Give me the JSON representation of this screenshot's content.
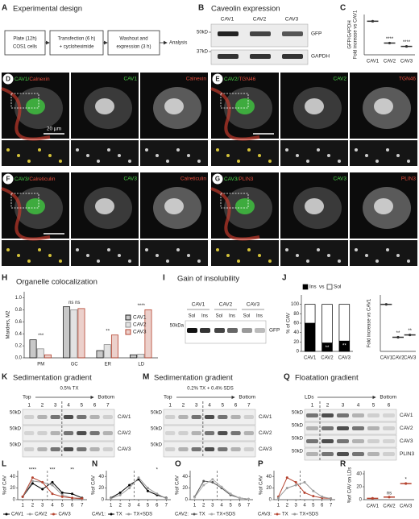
{
  "panels": {
    "A": {
      "letter": "A",
      "title": "Experimental design",
      "steps": [
        [
          "Plate (12h)",
          "COS1 cells"
        ],
        [
          "Transfection (6 h)",
          "+ cycloheximide"
        ],
        [
          "Washout and",
          "expression (3 h)"
        ]
      ],
      "end": "Analysis"
    },
    "B": {
      "letter": "B",
      "title": "Caveolin expression",
      "lanes": [
        "CAV1",
        "CAV2",
        "CAV3"
      ],
      "markers": [
        "50kD",
        "37kD"
      ],
      "bands": [
        "GFP",
        "GAPDH"
      ]
    },
    "C": {
      "letter": "C"
    },
    "D": {
      "letter": "D",
      "merge": [
        "CAV1/",
        "Calnexin"
      ],
      "channels": [
        "CAV1",
        "Calnexin"
      ],
      "scale": "20 µm"
    },
    "E": {
      "letter": "E",
      "merge": [
        "CAV2/",
        "TGN46"
      ],
      "channels": [
        "CAV2",
        "TGN46"
      ]
    },
    "F": {
      "letter": "F",
      "merge": [
        "CAV3/",
        "Calreticulin"
      ],
      "channels": [
        "CAV3",
        "Calreticulin"
      ]
    },
    "G": {
      "letter": "G",
      "merge": [
        "CAV3/",
        "PLIN3"
      ],
      "channels": [
        "CAV3",
        "PLIN3"
      ]
    },
    "H": {
      "letter": "H"
    },
    "I": {
      "letter": "I",
      "title": "Gain of insolubility",
      "lanes": [
        "CAV1",
        "CAV2",
        "CAV3"
      ],
      "fractions": [
        "Sol",
        "Ins"
      ],
      "marker": "50kDa",
      "band": "GFP"
    },
    "J": {
      "letter": "J"
    },
    "K": {
      "letter": "K",
      "title": "Sedimentation gradient",
      "condition": "0.5% TX",
      "ends": [
        "Top",
        "Bottom"
      ],
      "fractions": [
        1,
        2,
        3,
        4,
        5,
        6,
        7
      ],
      "marker": "50kD",
      "rows": [
        "CAV1",
        "CAV2",
        "CAV3"
      ]
    },
    "M": {
      "letter": "M",
      "title": "Sedimentation gradient",
      "condition": "0.2% TX + 0.4% SDS",
      "ends": [
        "Top",
        "Bottom"
      ],
      "fractions": [
        1,
        2,
        3,
        4,
        5,
        6,
        7
      ],
      "marker": "50kD",
      "rows": [
        "CAV1",
        "CAV2",
        "CAV3"
      ]
    },
    "Q": {
      "letter": "Q",
      "title": "Floatation gradient",
      "ends": [
        "LDs",
        "Bottom"
      ],
      "fractions": [
        1,
        2,
        3,
        4,
        5,
        6
      ],
      "marker": "50kD",
      "rows": [
        "CAV1",
        "CAV2",
        "CAV3",
        "PLIN3"
      ]
    },
    "L": {
      "letter": "L"
    },
    "N": {
      "letter": "N"
    },
    "O": {
      "letter": "O"
    },
    "P": {
      "letter": "P"
    },
    "R": {
      "letter": "R"
    }
  },
  "chart_data": [
    {
      "type": "dot",
      "ylabel": [
        "GFP/GAPDH",
        "Fold increase vs CAV1"
      ],
      "categories": [
        "CAV1",
        "CAV2",
        "CAV3"
      ],
      "values": [
        1,
        0.35,
        0.25
      ],
      "ylim": [
        0,
        1.2
      ],
      "color": "#333333",
      "annotations": [
        null,
        "****",
        "****"
      ]
    },
    {
      "type": "bar",
      "title": "Organelle colocalization",
      "ylabel": "Manders, M2",
      "categories": [
        "PM",
        "GC",
        "ER",
        "LD"
      ],
      "series": [
        {
          "name": "CAV1",
          "color": "#222222",
          "values": [
            0.3,
            0.85,
            0.12,
            0.05
          ]
        },
        {
          "name": "CAV2",
          "color": "#8c8c8c",
          "values": [
            0.15,
            0.8,
            0.22,
            0.06
          ]
        },
        {
          "name": "CAV3",
          "color": "#b5432f",
          "values": [
            0.05,
            0.82,
            0.38,
            0.8
          ]
        }
      ],
      "ylim": [
        0,
        1.1
      ],
      "yticks": [
        {
          "value": 0,
          "label": "0.0"
        },
        0.2,
        0.4,
        0.6,
        0.8,
        {
          "value": 1,
          "label": "1.0"
        }
      ],
      "annotations": [
        "***",
        "ns ns",
        "**",
        "****"
      ]
    },
    {
      "type": "stacked_bar",
      "ylabel": "% of CAV",
      "categories": [
        "CAV1",
        "CAV2",
        "CAV3"
      ],
      "series": [
        {
          "name": "Ins",
          "color": "#000000",
          "values": [
            60,
            18,
            22
          ]
        },
        {
          "name": "Sol",
          "color": "#ffffff",
          "values": [
            40,
            82,
            78
          ]
        }
      ],
      "legend_joiner": "vs",
      "ylim": [
        0,
        120
      ],
      "yticks": [
        0,
        20,
        40,
        60,
        80,
        100
      ],
      "annotations": [
        null,
        "**",
        "**"
      ]
    },
    {
      "type": "dot",
      "ylabel": "Fold increase vs CAV1",
      "categories": [
        "CAV1",
        "CAV2",
        "CAV3"
      ],
      "values": [
        1,
        0.3,
        0.35
      ],
      "ylim": [
        0,
        1.2
      ],
      "color": "#333333",
      "annotations": [
        null,
        "**",
        "**"
      ]
    },
    {
      "type": "line",
      "ylabel": "%of CAV",
      "x": [
        1,
        2,
        3,
        4,
        5,
        6,
        7
      ],
      "xlim": [
        0.5,
        7.5
      ],
      "xticks": [
        1,
        2,
        3,
        4,
        5,
        6,
        7
      ],
      "ylim": [
        0,
        50
      ],
      "yticks": [
        0,
        20,
        40
      ],
      "series": [
        {
          "name": "CAV1",
          "color": "#000000",
          "values": [
            5,
            28,
            18,
            30,
            12,
            10,
            3
          ]
        },
        {
          "name": "CAV2",
          "color": "#999999",
          "values": [
            5,
            32,
            30,
            25,
            8,
            3,
            1
          ]
        },
        {
          "name": "CAV3",
          "color": "#b5432f",
          "values": [
            5,
            38,
            30,
            10,
            5,
            3,
            2
          ]
        }
      ],
      "annotations": [
        {
          "x": 2,
          "label": "****"
        },
        {
          "x": 4,
          "label": "***"
        },
        {
          "x": 6,
          "label": "**"
        }
      ]
    },
    {
      "type": "line",
      "ylabel": "%of CAV",
      "legend_prefix": "CAV1:",
      "x": [
        1,
        2,
        3,
        4,
        5,
        6,
        7
      ],
      "xlim": [
        0.5,
        7.5
      ],
      "xticks": [
        1,
        2,
        3,
        4,
        5,
        6,
        7
      ],
      "ylim": [
        0,
        50
      ],
      "yticks": [
        0,
        20,
        40
      ],
      "series": [
        {
          "name": "TX",
          "color": "#000000",
          "values": [
            3,
            12,
            25,
            35,
            15,
            8,
            3
          ]
        },
        {
          "name": "TX+SDS",
          "color": "#999999",
          "values": [
            2,
            8,
            20,
            38,
            20,
            10,
            2
          ]
        }
      ],
      "annotations": [
        {
          "x": 6,
          "label": "*"
        }
      ]
    },
    {
      "type": "line",
      "ylabel": "%of CAV",
      "legend_prefix": "CAV2:",
      "x": [
        1,
        2,
        3,
        4,
        5,
        6,
        7
      ],
      "xlim": [
        0.5,
        7.5
      ],
      "xticks": [
        1,
        2,
        3,
        4,
        5,
        6,
        7
      ],
      "ylim": [
        0,
        50
      ],
      "yticks": [
        0,
        20,
        40
      ],
      "series": [
        {
          "name": "TX",
          "color": "#555555",
          "values": [
            5,
            32,
            30,
            20,
            8,
            3,
            1
          ]
        },
        {
          "name": "TX+SDS",
          "color": "#aaaaaa",
          "values": [
            4,
            25,
            35,
            22,
            10,
            3,
            1
          ]
        }
      ]
    },
    {
      "type": "line",
      "ylabel": "%of CAV",
      "legend_prefix": "CAV3:",
      "x": [
        1,
        2,
        3,
        4,
        5,
        6,
        7
      ],
      "xlim": [
        0.5,
        7.5
      ],
      "xticks": [
        1,
        2,
        3,
        4,
        5,
        6,
        7
      ],
      "ylim": [
        0,
        50
      ],
      "yticks": [
        0,
        20,
        40
      ],
      "series": [
        {
          "name": "TX",
          "color": "#b5432f",
          "values": [
            5,
            38,
            30,
            12,
            6,
            3,
            2
          ]
        },
        {
          "name": "TX+SDS",
          "color": "#999999",
          "values": [
            3,
            20,
            25,
            30,
            15,
            5,
            2
          ]
        }
      ]
    },
    {
      "type": "dot",
      "ylabel": "%of CAV on LDs",
      "categories": [
        "CAV1",
        "CAV2",
        "CAV3"
      ],
      "values": [
        2,
        4,
        25
      ],
      "ylim": [
        0,
        45
      ],
      "yticks": [
        0,
        20,
        40
      ],
      "color": "#b5432f",
      "annotations": [
        null,
        "ns",
        "*"
      ]
    }
  ]
}
